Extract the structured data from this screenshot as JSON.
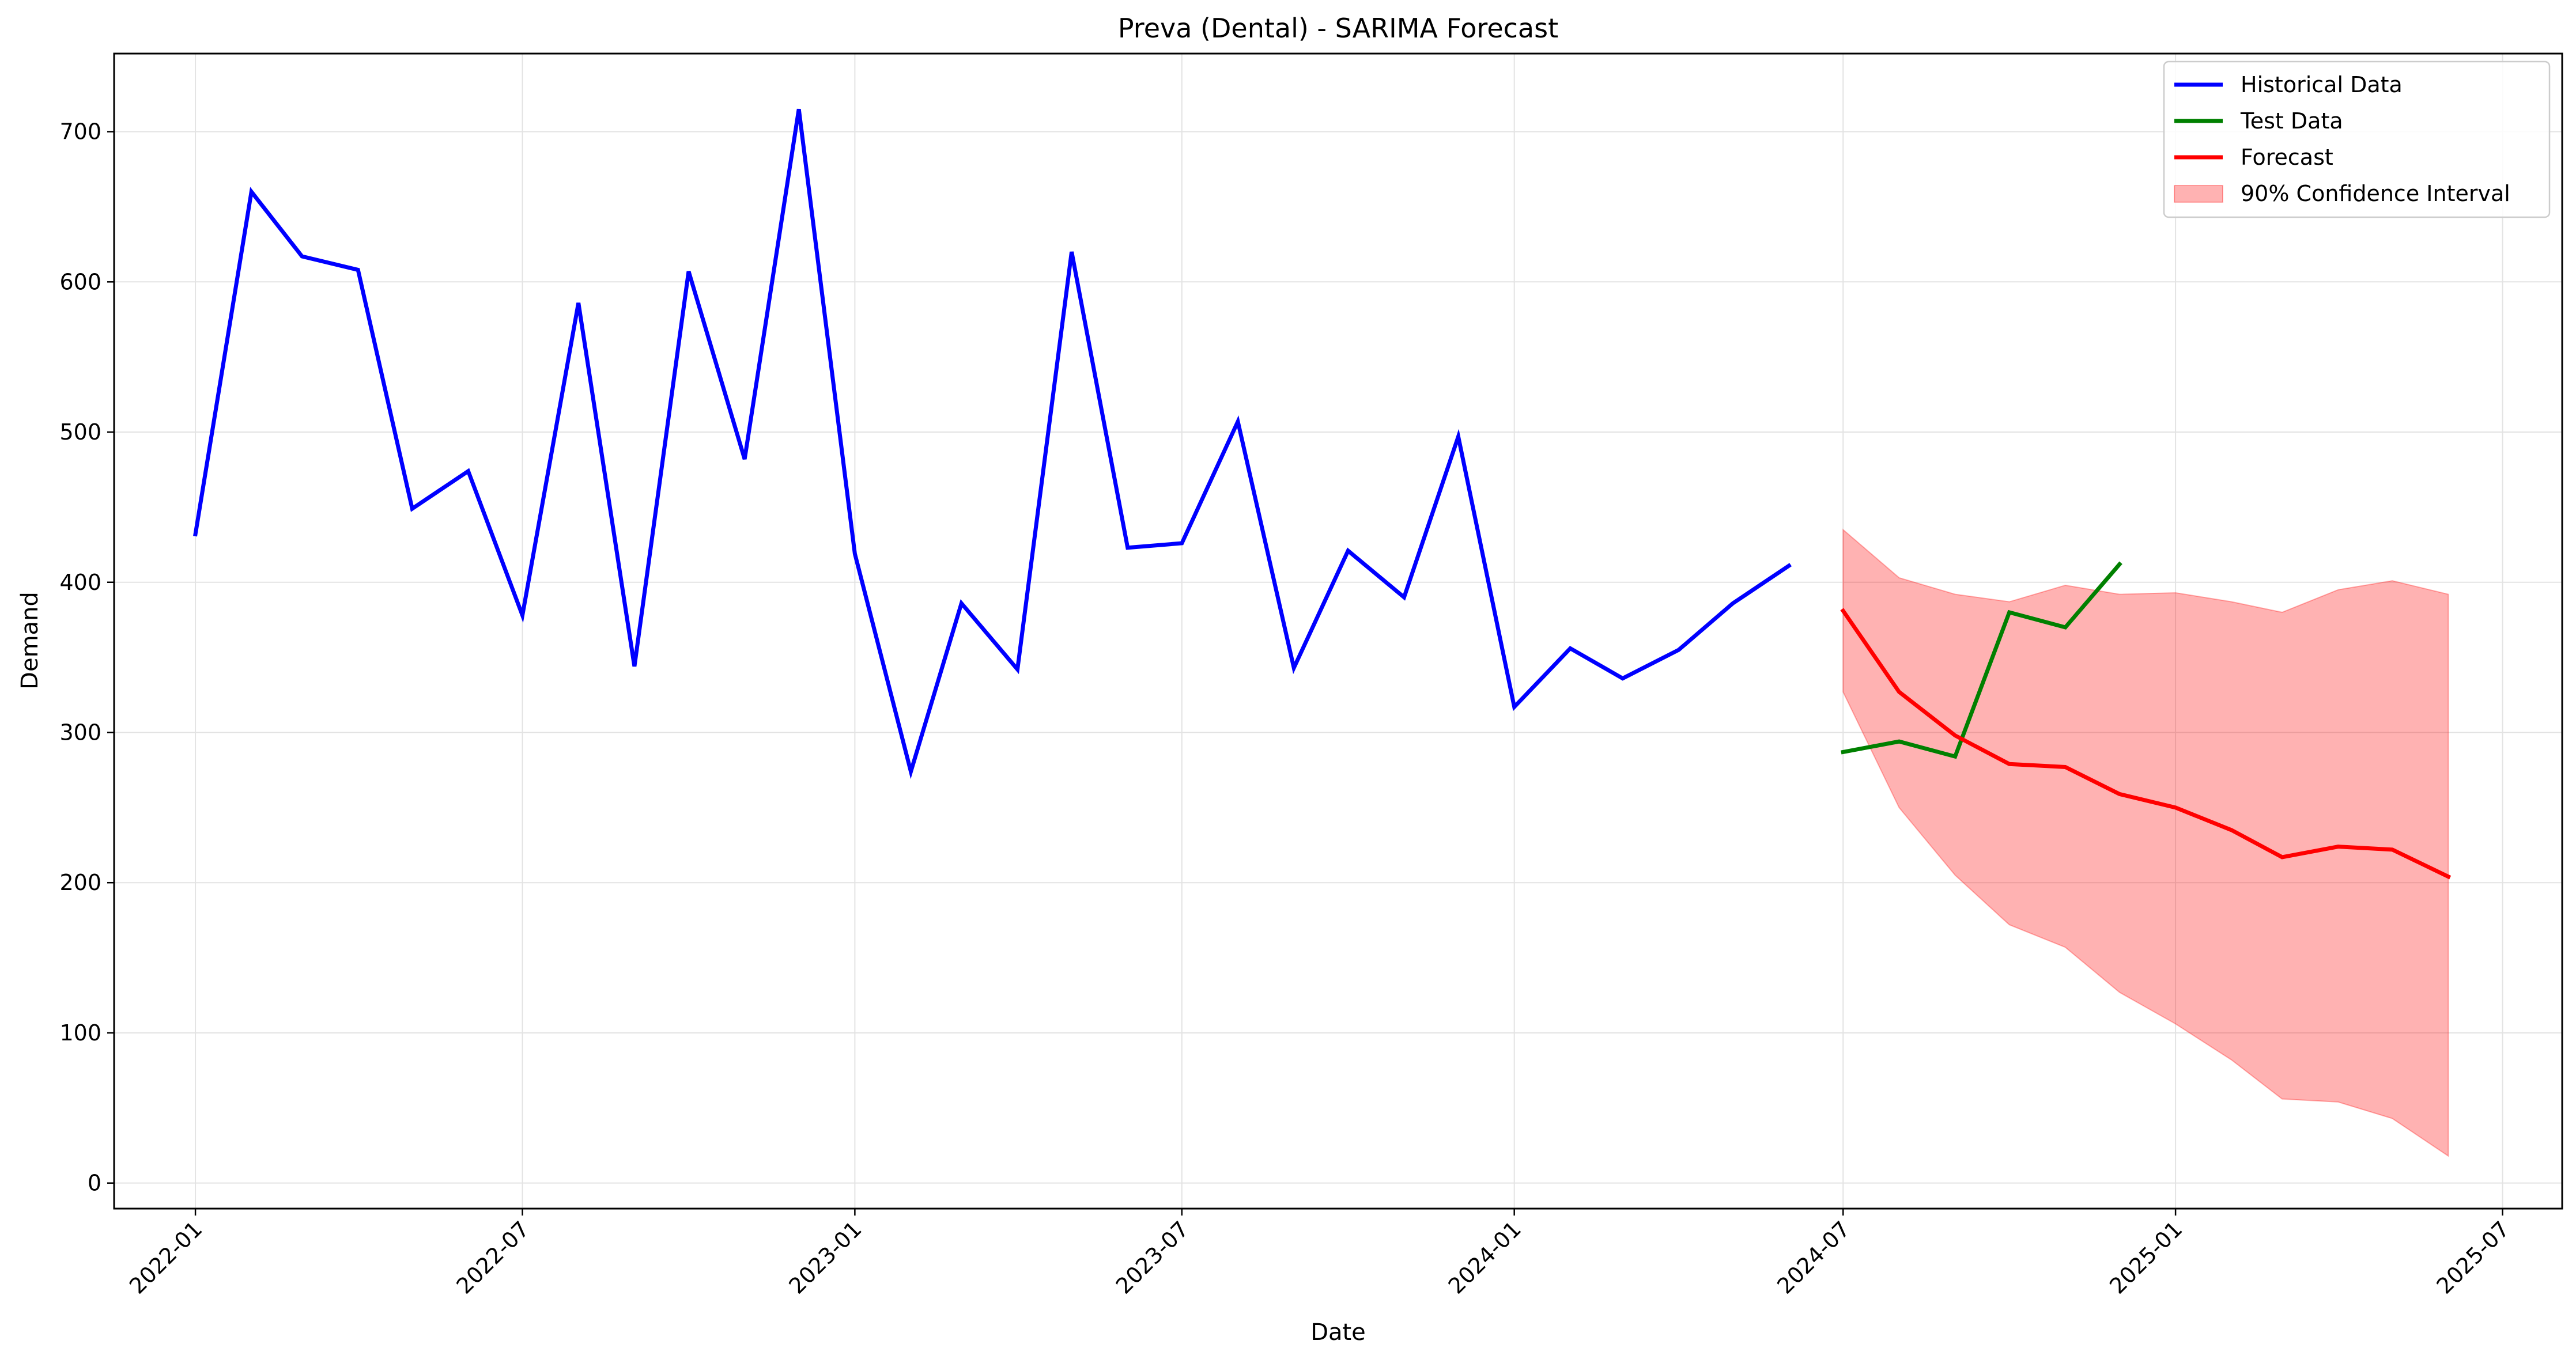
{
  "chart_data": {
    "type": "line",
    "title": "Preva (Dental) - SARIMA Forecast",
    "xlabel": "Date",
    "ylabel": "Demand",
    "xlim": [
      "2021-11-17",
      "2025-08-03"
    ],
    "ylim": [
      -17,
      752
    ],
    "x_ticks": [
      "2022-01",
      "2022-07",
      "2023-01",
      "2023-07",
      "2024-01",
      "2024-07",
      "2025-01",
      "2025-07"
    ],
    "y_ticks": [
      0,
      100,
      200,
      300,
      400,
      500,
      600,
      700
    ],
    "grid": true,
    "legend_position": "top-right",
    "series": [
      {
        "name": "Historical Data",
        "color": "#0000ff",
        "x": [
          "2022-01",
          "2022-02",
          "2022-03",
          "2022-04",
          "2022-05",
          "2022-06",
          "2022-07",
          "2022-08",
          "2022-09",
          "2022-10",
          "2022-11",
          "2022-12",
          "2023-01",
          "2023-02",
          "2023-03",
          "2023-04",
          "2023-05",
          "2023-06",
          "2023-07",
          "2023-08",
          "2023-09",
          "2023-10",
          "2023-11",
          "2023-12",
          "2024-01",
          "2024-02",
          "2024-03",
          "2024-04",
          "2024-05",
          "2024-06"
        ],
        "values": [
          432,
          660,
          617,
          608,
          449,
          474,
          378,
          586,
          344,
          607,
          482,
          715,
          419,
          274,
          386,
          342,
          620,
          423,
          426,
          507,
          343,
          421,
          390,
          497,
          317,
          356,
          336,
          355,
          386,
          411
        ]
      },
      {
        "name": "Test Data",
        "color": "#008000",
        "x": [
          "2024-07",
          "2024-08",
          "2024-09",
          "2024-10",
          "2024-11",
          "2024-12"
        ],
        "values": [
          287,
          294,
          284,
          380,
          370,
          412
        ]
      },
      {
        "name": "Forecast",
        "color": "#ff0000",
        "x": [
          "2024-07",
          "2024-08",
          "2024-09",
          "2024-10",
          "2024-11",
          "2024-12",
          "2025-01",
          "2025-02",
          "2025-03",
          "2025-04",
          "2025-05",
          "2025-06"
        ],
        "values": [
          381,
          327,
          298,
          279,
          277,
          259,
          250,
          235,
          217,
          224,
          222,
          204
        ]
      }
    ],
    "confidence_interval": {
      "name": "90% Confidence Interval",
      "color": "#ff0000",
      "x": [
        "2024-07",
        "2024-08",
        "2024-09",
        "2024-10",
        "2024-11",
        "2024-12",
        "2025-01",
        "2025-02",
        "2025-03",
        "2025-04",
        "2025-05",
        "2025-06"
      ],
      "lower": [
        327,
        250,
        205,
        172,
        157,
        127,
        106,
        82,
        56,
        54,
        43,
        18
      ],
      "upper": [
        435,
        403,
        392,
        387,
        398,
        392,
        393,
        387,
        380,
        395,
        401,
        392
      ]
    }
  }
}
